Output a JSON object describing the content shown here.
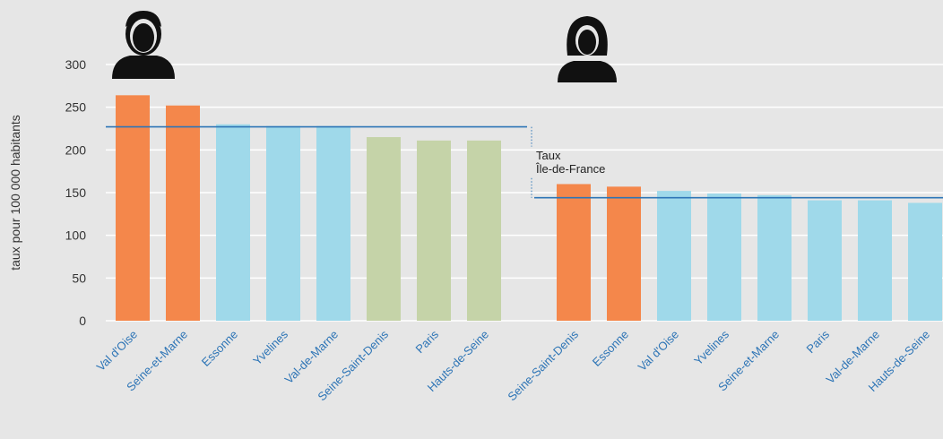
{
  "chart_data": [
    {
      "type": "bar",
      "ylabel": "taux pour 100 000 habitants",
      "categories": [
        "Val d'Oise",
        "Seine-et-Marne",
        "Essonne",
        "Yvelines",
        "Val-de-Marne",
        "Seine-Saint-Denis",
        "Paris",
        "Hauts-de-Seine"
      ],
      "values": [
        264,
        252,
        230,
        228,
        228,
        215,
        211,
        211
      ],
      "colors": [
        "#f4874b",
        "#f4874b",
        "#9fd9ea",
        "#9fd9ea",
        "#9fd9ea",
        "#c5d3a8",
        "#c5d3a8",
        "#c5d3a8"
      ],
      "reference": 227,
      "ylim": [
        0,
        300
      ],
      "yticks": [
        0,
        50,
        100,
        150,
        200,
        250,
        300
      ],
      "grid": true
    },
    {
      "type": "bar",
      "categories": [
        "Seine-Saint-Denis",
        "Essonne",
        "Val d'Oise",
        "Yvelines",
        "Seine-et-Marne",
        "Paris",
        "Val-de-Marne",
        "Hauts-de-Seine"
      ],
      "values": [
        160,
        157,
        152,
        149,
        147,
        141,
        141,
        138
      ],
      "colors": [
        "#f4874b",
        "#f4874b",
        "#9fd9ea",
        "#9fd9ea",
        "#9fd9ea",
        "#9fd9ea",
        "#9fd9ea",
        "#9fd9ea"
      ],
      "reference": 144,
      "annotation": [
        "Taux",
        "Île-de-France"
      ],
      "ylim": [
        0,
        300
      ]
    }
  ]
}
